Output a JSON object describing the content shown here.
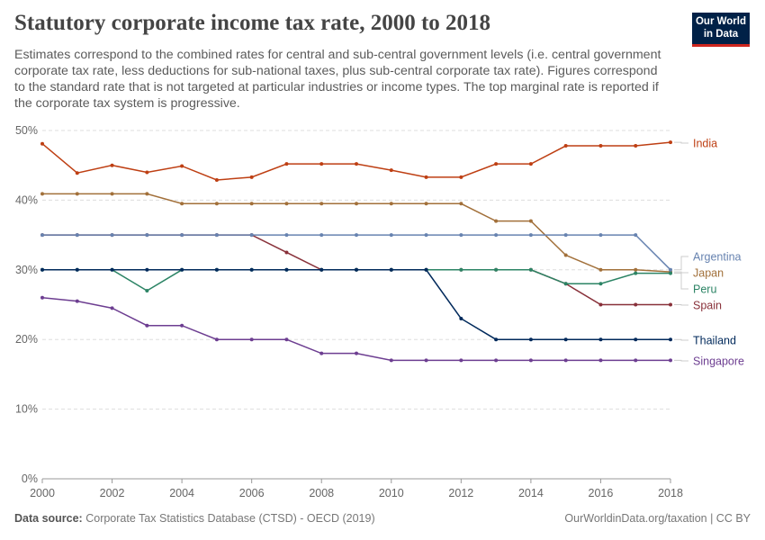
{
  "header": {
    "title": "Statutory corporate income tax rate, 2000 to 2018",
    "subtitle": "Estimates correspond to the combined rates for central and sub-central government levels (i.e. central government corporate tax rate, less deductions for sub-national taxes, plus sub-central corporate tax rate). Figures correspond to the standard rate that is not targeted at particular industries or income types. The top marginal rate is reported if the corporate tax system is progressive.",
    "logo_line1": "Our World",
    "logo_line2": "in Data"
  },
  "footer": {
    "source_label": "Data source:",
    "source": "Corporate Tax Statistics Database (CTSD) - OECD (2019)",
    "credit": "OurWorldinData.org/taxation | CC BY"
  },
  "chart_data": {
    "type": "line",
    "title": "Statutory corporate income tax rate, 2000 to 2018",
    "x": [
      2000,
      2001,
      2002,
      2003,
      2004,
      2005,
      2006,
      2007,
      2008,
      2009,
      2010,
      2011,
      2012,
      2013,
      2014,
      2015,
      2016,
      2017,
      2018
    ],
    "xticks": [
      "2000",
      "2002",
      "2004",
      "2006",
      "2008",
      "2010",
      "2012",
      "2014",
      "2016",
      "2018"
    ],
    "yticks": [
      "0%",
      "10%",
      "20%",
      "30%",
      "40%",
      "50%"
    ],
    "ylim": [
      0,
      50
    ],
    "grid": "horizontal dashed",
    "legend": "right, line-end labels",
    "series": [
      {
        "name": "India",
        "color": "#be3f13",
        "values": [
          48.1,
          43.9,
          45.0,
          44.0,
          44.9,
          42.9,
          43.3,
          45.2,
          45.2,
          45.2,
          44.3,
          43.3,
          43.3,
          45.2,
          45.2,
          47.8,
          47.8,
          47.8,
          48.3
        ]
      },
      {
        "name": "Japan",
        "color": "#a2703a",
        "values": [
          40.9,
          40.9,
          40.9,
          40.9,
          39.5,
          39.5,
          39.5,
          39.5,
          39.5,
          39.5,
          39.5,
          39.5,
          39.5,
          37.0,
          37.0,
          32.1,
          30.0,
          30.0,
          29.7
        ]
      },
      {
        "name": "Spain",
        "color": "#883039",
        "values": [
          35,
          35,
          35,
          35,
          35,
          35,
          35,
          32.5,
          30,
          30,
          30,
          30,
          30,
          30,
          30,
          28,
          25,
          25,
          25
        ]
      },
      {
        "name": "Argentina",
        "color": "#6783b0",
        "values": [
          35,
          35,
          35,
          35,
          35,
          35,
          35,
          35,
          35,
          35,
          35,
          35,
          35,
          35,
          35,
          35,
          35,
          35,
          30
        ]
      },
      {
        "name": "Peru",
        "color": "#2c8465",
        "values": [
          30,
          30,
          30,
          27,
          30,
          30,
          30,
          30,
          30,
          30,
          30,
          30,
          30,
          30,
          30,
          28,
          28,
          29.5,
          29.5
        ]
      },
      {
        "name": "Thailand",
        "color": "#00295b",
        "values": [
          30,
          30,
          30,
          30,
          30,
          30,
          30,
          30,
          30,
          30,
          30,
          30,
          23,
          20,
          20,
          20,
          20,
          20,
          20
        ]
      },
      {
        "name": "Singapore",
        "color": "#6d3e91",
        "values": [
          26,
          25.5,
          24.5,
          22,
          22,
          20,
          20,
          20,
          18,
          18,
          17,
          17,
          17,
          17,
          17,
          17,
          17,
          17,
          17
        ]
      }
    ]
  }
}
